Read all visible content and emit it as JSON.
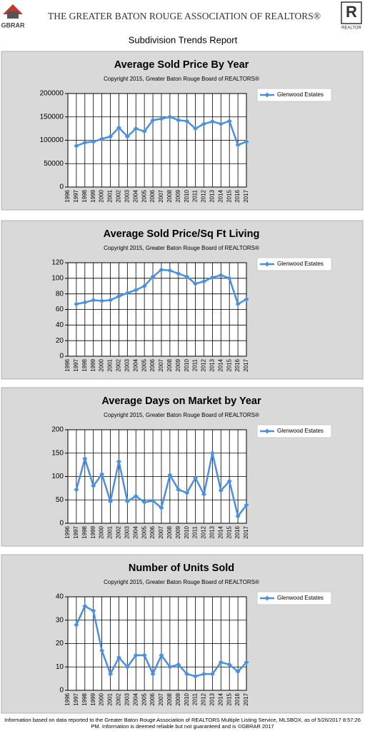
{
  "header": {
    "logo": "GBRAR",
    "title": "THE GREATER BATON ROUGE ASSOCIATION OF REALTORS®",
    "realtor_letter": "R",
    "realtor": "REALTOR",
    "report": "Subdivision Trends Report"
  },
  "chart_data": [
    {
      "type": "line",
      "title": "Average Sold Price By Year",
      "subtitle": "Copyright 2015, Greater Baton Rouge Board of REALTORS®",
      "categories": [
        "1996",
        "1997",
        "1998",
        "1999",
        "2000",
        "2001",
        "2002",
        "2003",
        "2004",
        "2005",
        "2006",
        "2007",
        "2008",
        "2009",
        "2010",
        "2011",
        "2012",
        "2013",
        "2014",
        "2015",
        "2016",
        "2017"
      ],
      "series": [
        {
          "name": "Glenwood Estates",
          "color": "#4a8fe0",
          "values": [
            null,
            88000,
            95000,
            97000,
            103000,
            108000,
            127000,
            108000,
            125000,
            119000,
            143000,
            146000,
            150000,
            143000,
            141000,
            125000,
            135000,
            140000,
            135000,
            141000,
            90000,
            97000
          ]
        }
      ],
      "ylim": [
        0,
        200000
      ],
      "yticks": [
        0,
        50000,
        100000,
        150000,
        200000
      ],
      "grid": true,
      "legend": "right"
    },
    {
      "type": "line",
      "title": "Average Sold Price/Sq Ft Living",
      "subtitle": "Copyright 2015, Greater Baton Rouge Board of REALTORS®",
      "categories": [
        "1996",
        "1997",
        "1998",
        "1999",
        "2000",
        "2001",
        "2002",
        "2003",
        "2004",
        "2005",
        "2006",
        "2007",
        "2008",
        "2009",
        "2010",
        "2011",
        "2012",
        "2013",
        "2014",
        "2015",
        "2016",
        "2017"
      ],
      "series": [
        {
          "name": "Glenwood Estates",
          "color": "#4a8fe0",
          "values": [
            null,
            67,
            69,
            72,
            71,
            72,
            77,
            81,
            85,
            90,
            102,
            111,
            110,
            106,
            102,
            93,
            96,
            101,
            104,
            100,
            67,
            73
          ]
        }
      ],
      "ylim": [
        0,
        120
      ],
      "yticks": [
        0,
        20,
        40,
        60,
        80,
        100,
        120
      ],
      "grid": true,
      "legend": "right"
    },
    {
      "type": "line",
      "title": "Average Days on Market by Year",
      "subtitle": "Copyright 2015, Greater Baton Rouge Board of REALTORS®",
      "categories": [
        "1996",
        "1997",
        "1998",
        "1999",
        "2000",
        "2001",
        "2002",
        "2003",
        "2004",
        "2005",
        "2006",
        "2007",
        "2008",
        "2009",
        "2010",
        "2011",
        "2012",
        "2013",
        "2014",
        "2015",
        "2016",
        "2017"
      ],
      "series": [
        {
          "name": "Glenwood Estates",
          "color": "#4a8fe0",
          "values": [
            null,
            72,
            138,
            80,
            105,
            47,
            132,
            47,
            58,
            45,
            48,
            33,
            103,
            72,
            65,
            97,
            62,
            150,
            70,
            90,
            15,
            39
          ]
        }
      ],
      "ylim": [
        0,
        200
      ],
      "yticks": [
        0,
        50,
        100,
        150,
        200
      ],
      "grid": true,
      "legend": "right"
    },
    {
      "type": "line",
      "title": "Number of Units Sold",
      "subtitle": "Copyright 2015, Greater Baton Rouge Board of REALTORS®",
      "categories": [
        "1996",
        "1997",
        "1998",
        "1999",
        "2000",
        "2001",
        "2002",
        "2003",
        "2004",
        "2005",
        "2006",
        "2007",
        "2008",
        "2009",
        "2010",
        "2011",
        "2012",
        "2013",
        "2014",
        "2015",
        "2016",
        "2017"
      ],
      "series": [
        {
          "name": "Glenwood Estates",
          "color": "#4a8fe0",
          "values": [
            null,
            28,
            36,
            34,
            17,
            7,
            14,
            10,
            15,
            15,
            7,
            15,
            10,
            11,
            7,
            6,
            7,
            7,
            12,
            11,
            8,
            12
          ]
        }
      ],
      "ylim": [
        0,
        40
      ],
      "yticks": [
        0,
        10,
        20,
        30,
        40
      ],
      "grid": true,
      "legend": "right"
    }
  ],
  "footer": "Information based on data reported to the Greater Baton Rouge Association of REALTORS Multiple Listing Service, MLSBOX, as of 5/26/2017 8:57:26 PM. Information is deemed reliable but not guaranteed and is ©GBRAR 2017"
}
